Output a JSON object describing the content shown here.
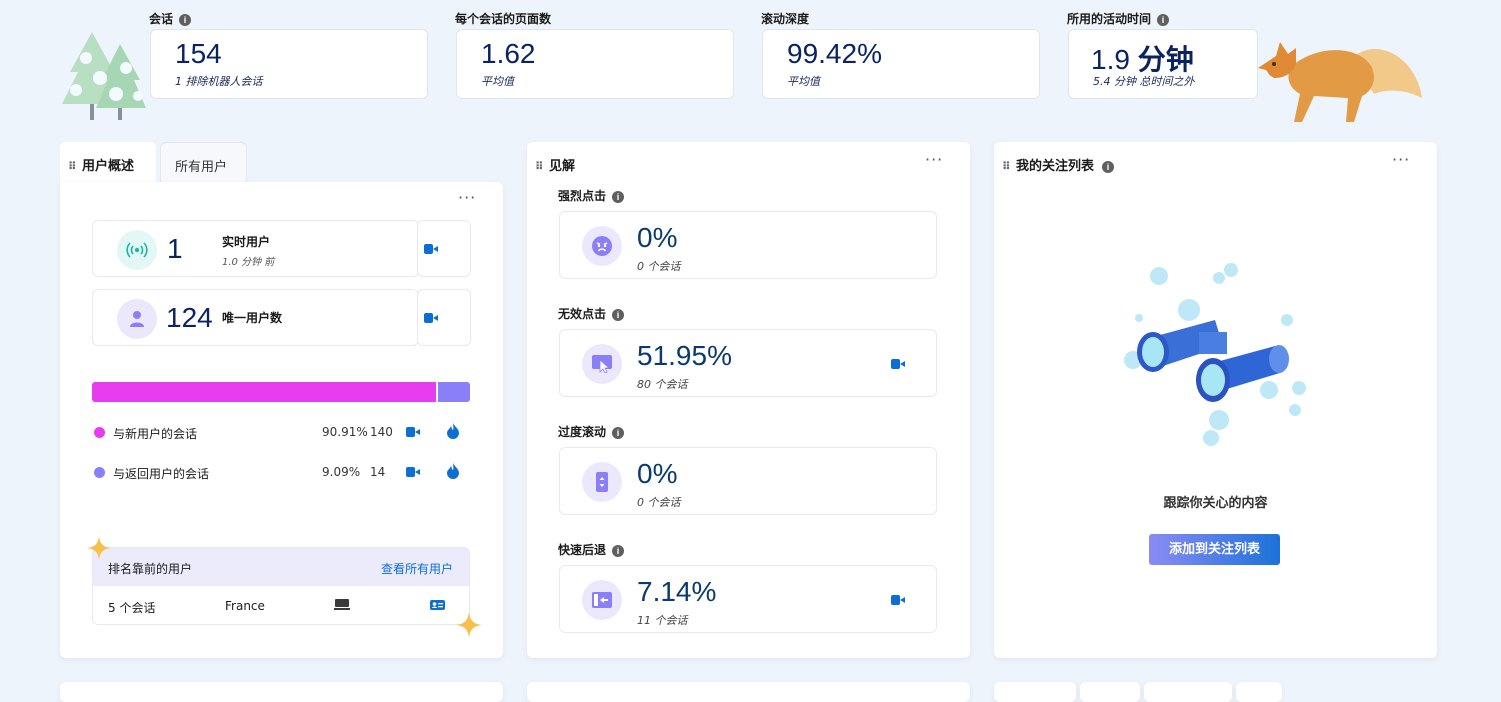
{
  "metrics": [
    {
      "label": "会话",
      "value": "154",
      "value_unit": "",
      "sub": "1 排除机器人会话"
    },
    {
      "label": "每个会话的页面数",
      "value": "1.62",
      "value_unit": "",
      "sub": "平均值"
    },
    {
      "label": "滚动深度",
      "value": "99.42%",
      "value_unit": "",
      "sub": "平均值"
    },
    {
      "label": "所用的活动时间",
      "value": "1.9",
      "value_unit": "分钟",
      "sub": "5.4 分钟 总时间之外"
    }
  ],
  "users_panel": {
    "tab_active": "用户概述",
    "tab_inactive": "所有用户",
    "live": {
      "value": "1",
      "label": "实时用户",
      "sub": "1.0 分钟 前"
    },
    "unique": {
      "value": "124",
      "label": "唯一用户数"
    },
    "bar": {
      "new_fraction": 0.9091,
      "new_color": "#e73cf0",
      "return_color": "#8a7ff8"
    },
    "legend": [
      {
        "label": "与新用户的会话",
        "percent": "90.91%",
        "count": "140",
        "color": "#e73cf0"
      },
      {
        "label": "与返回用户的会话",
        "percent": "9.09%",
        "count": "14",
        "color": "#8a7ff8"
      }
    ],
    "top_users": {
      "title": "排名靠前的用户",
      "link": "查看所有用户",
      "row": {
        "sessions": "5 个会话",
        "country": "France"
      }
    }
  },
  "insights": {
    "title": "见解",
    "items": [
      {
        "label": "强烈点击",
        "value": "0%",
        "sub": "0 个会话",
        "icon": "angry-face-icon",
        "has_video": false
      },
      {
        "label": "无效点击",
        "value": "51.95%",
        "sub": "80 个会话",
        "icon": "dead-click-icon",
        "has_video": true
      },
      {
        "label": "过度滚动",
        "value": "0%",
        "sub": "0 个会话",
        "icon": "scroll-phone-icon",
        "has_video": false
      },
      {
        "label": "快速后退",
        "value": "7.14%",
        "sub": "11 个会话",
        "icon": "quick-back-icon",
        "has_video": true
      }
    ]
  },
  "watchlist": {
    "title": "我的关注列表",
    "empty_text": "跟踪你关心的内容",
    "button": "添加到关注列表"
  }
}
